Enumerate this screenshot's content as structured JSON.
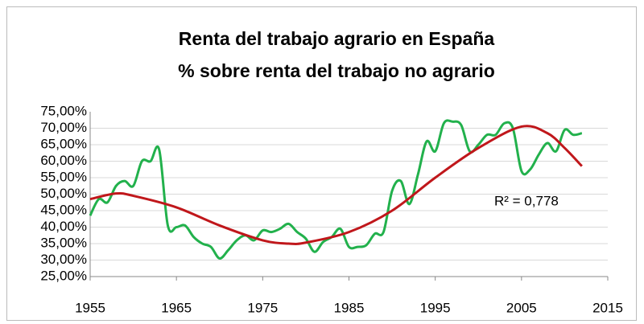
{
  "chart_data": {
    "type": "line",
    "title": "Renta del trabajo agrario en España",
    "subtitle": "% sobre renta del trabajo no agrario",
    "annotation": "R² = 0,778",
    "x": [
      1955,
      1956,
      1957,
      1958,
      1959,
      1960,
      1961,
      1962,
      1963,
      1964,
      1965,
      1966,
      1967,
      1968,
      1969,
      1970,
      1971,
      1972,
      1973,
      1974,
      1975,
      1976,
      1977,
      1978,
      1979,
      1980,
      1981,
      1982,
      1983,
      1984,
      1985,
      1986,
      1987,
      1988,
      1989,
      1990,
      1991,
      1992,
      1993,
      1994,
      1995,
      1996,
      1997,
      1998,
      1999,
      2000,
      2001,
      2002,
      2003,
      2004,
      2005,
      2006,
      2007,
      2008,
      2009,
      2010,
      2011,
      2012
    ],
    "series": [
      {
        "color": "#22b14c",
        "values": [
          43.5,
          48.5,
          47.5,
          52.5,
          54,
          52.5,
          60,
          60,
          63.5,
          40.5,
          40,
          40.5,
          37,
          35,
          34,
          30.5,
          33,
          36,
          37.5,
          36,
          39,
          38.5,
          39.5,
          41,
          38.5,
          36.5,
          32.5,
          35.5,
          37,
          39.5,
          34,
          34,
          34.5,
          38,
          38.5,
          51,
          54,
          47,
          56,
          66,
          63,
          71.5,
          72,
          71,
          63,
          65,
          68,
          68,
          71.5,
          70,
          57,
          57.5,
          62,
          65.5,
          63,
          69.5,
          68,
          68.5
        ]
      },
      {
        "color": "#c0171b",
        "x": [
          1955,
          1958,
          1960,
          1965,
          1970,
          1975,
          1978,
          1980,
          1985,
          1990,
          1995,
          2000,
          2005,
          2008,
          2010,
          2012
        ],
        "values": [
          48.5,
          50.2,
          49.5,
          46,
          40.5,
          36,
          35,
          35.3,
          38.5,
          45,
          55,
          64,
          70.5,
          68.5,
          64,
          58.5
        ]
      }
    ],
    "xlim": [
      1955,
      2015
    ],
    "xticks": [
      1955,
      1965,
      1975,
      1985,
      1995,
      2005,
      2015
    ],
    "ylim": [
      25,
      75
    ],
    "yticks": [
      {
        "value": 25,
        "label": "25,00%"
      },
      {
        "value": 30,
        "label": "30,00%"
      },
      {
        "value": 35,
        "label": "35,00%"
      },
      {
        "value": 40,
        "label": "40,00%"
      },
      {
        "value": 45,
        "label": "45,00%"
      },
      {
        "value": 50,
        "label": "50,00%"
      },
      {
        "value": 55,
        "label": "55,00%"
      },
      {
        "value": 60,
        "label": "60,00%"
      },
      {
        "value": 65,
        "label": "65,00%"
      },
      {
        "value": 70,
        "label": "70,00%"
      },
      {
        "value": 75,
        "label": "75,00%"
      }
    ],
    "grid": true
  }
}
